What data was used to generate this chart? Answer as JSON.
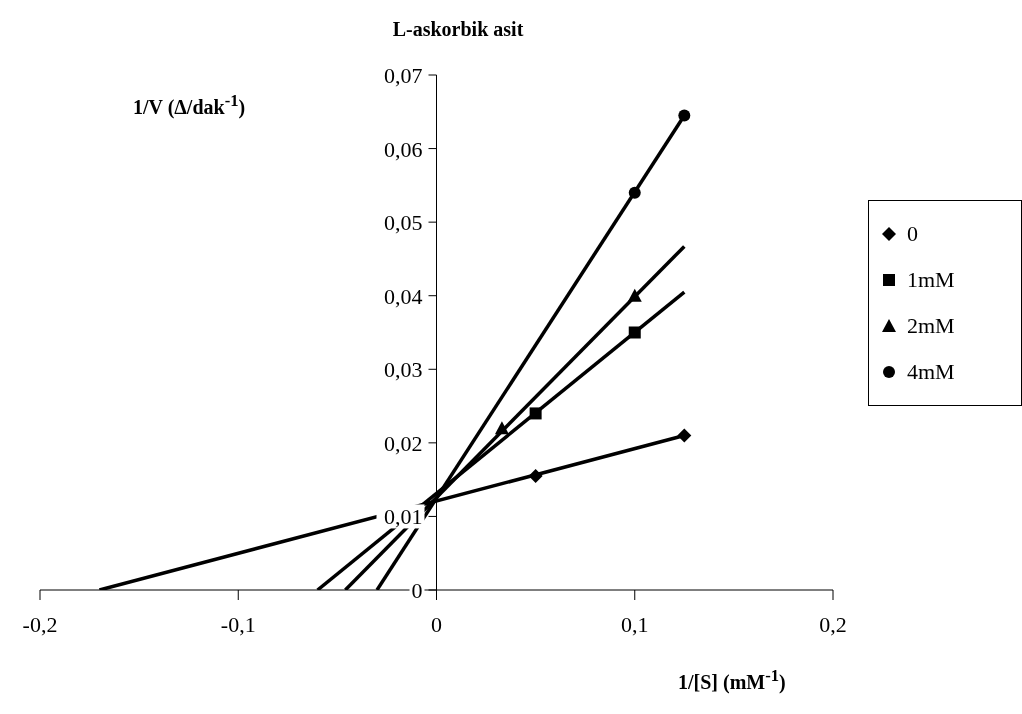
{
  "chart_data": {
    "type": "scatter",
    "title": "L-askorbik asit",
    "xlabel": "1/[S] (mM$^{-1}$)",
    "ylabel": "1/V (Δ/dak$^{-1}$)",
    "xlim": [
      -0.2,
      0.2
    ],
    "xticks": [
      {
        "value": -0.2,
        "label": "-0,2"
      },
      {
        "value": -0.1,
        "label": "-0,1"
      },
      0,
      {
        "value": 0.1,
        "label": "0,1"
      },
      {
        "value": 0.2,
        "label": "0,2"
      }
    ],
    "ylim": [
      0,
      0.07
    ],
    "yticks": [
      0,
      {
        "value": 0.01,
        "label": "0,01"
      },
      {
        "value": 0.02,
        "label": "0,02"
      },
      {
        "value": 0.03,
        "label": "0,03"
      },
      {
        "value": 0.04,
        "label": "0,04"
      },
      {
        "value": 0.05,
        "label": "0,05"
      },
      {
        "value": 0.06,
        "label": "0,06"
      },
      {
        "value": 0.07,
        "label": "0,07"
      }
    ],
    "grid": false,
    "legend": "right",
    "series": [
      {
        "name": "0",
        "type": "scatter",
        "marker": "diamond",
        "color": "#000000",
        "x": [
          0.05,
          0.125
        ],
        "values": [
          0.0155,
          0.021
        ]
      },
      {
        "name": "1mM",
        "type": "scatter",
        "marker": "square",
        "color": "#000000",
        "x": [
          0.05,
          0.1
        ],
        "values": [
          0.024,
          0.035
        ]
      },
      {
        "name": "2mM",
        "type": "scatter",
        "marker": "triangle",
        "color": "#000000",
        "x": [
          0.033,
          0.1
        ],
        "values": [
          0.022,
          0.04
        ]
      },
      {
        "name": "4mM",
        "type": "scatter",
        "marker": "circle",
        "color": "#000000",
        "x": [
          0.1,
          0.125
        ],
        "values": [
          0.054,
          0.0645
        ]
      },
      {
        "type": "line",
        "marker": "none",
        "color": "#000000",
        "x": [
          -0.17,
          0.125
        ],
        "values": [
          0,
          0.021
        ]
      },
      {
        "type": "line",
        "marker": "none",
        "color": "#000000",
        "x": [
          -0.06,
          0.125
        ],
        "values": [
          0,
          0.0405
        ]
      },
      {
        "type": "line",
        "marker": "none",
        "color": "#000000",
        "x": [
          -0.046,
          0.125
        ],
        "values": [
          0,
          0.0467
        ]
      },
      {
        "type": "line",
        "marker": "none",
        "color": "#000000",
        "x": [
          -0.03,
          0.125
        ],
        "values": [
          0,
          0.0645
        ]
      }
    ]
  }
}
